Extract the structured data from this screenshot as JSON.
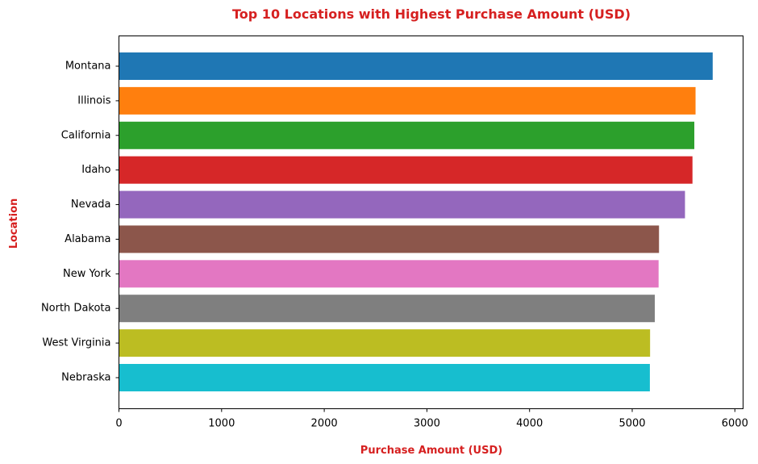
{
  "chart_data": {
    "type": "bar",
    "orientation": "horizontal",
    "title": "Top 10 Locations with Highest Purchase Amount (USD)",
    "xlabel": "Purchase Amount (USD)",
    "ylabel": "Location",
    "categories": [
      "Montana",
      "Illinois",
      "California",
      "Idaho",
      "Nevada",
      "Alabama",
      "New York",
      "North Dakota",
      "West Virginia",
      "Nebraska"
    ],
    "values": [
      5784,
      5617,
      5605,
      5587,
      5514,
      5261,
      5257,
      5220,
      5174,
      5172
    ],
    "colors": [
      "#1f77b4",
      "#ff7f0e",
      "#2ca02c",
      "#d62728",
      "#9467bd",
      "#8c564b",
      "#e377c2",
      "#7f7f7f",
      "#bcbd22",
      "#17becf"
    ],
    "xlim": [
      0,
      6080
    ],
    "xticks": [
      0,
      1000,
      2000,
      3000,
      4000,
      5000,
      6000
    ],
    "grid": false,
    "label_color": "#d62020"
  }
}
